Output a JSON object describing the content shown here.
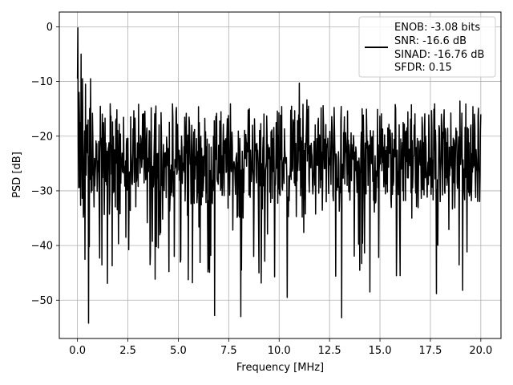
{
  "chart_data": {
    "type": "line",
    "xlabel": "Frequency [MHz]",
    "ylabel": "PSD [dB]",
    "xlim": [
      -0.9,
      21.0
    ],
    "ylim": [
      -57.0,
      2.7
    ],
    "grid": true,
    "line_color": "#000000",
    "x_ticks": [
      0.0,
      2.5,
      5.0,
      7.5,
      10.0,
      12.5,
      15.0,
      17.5,
      20.0
    ],
    "x_tick_labels": [
      "0.0",
      "2.5",
      "5.0",
      "7.5",
      "10.0",
      "12.5",
      "15.0",
      "17.5",
      "20.0"
    ],
    "y_ticks": [
      0,
      -10,
      -20,
      -30,
      -40,
      -50
    ],
    "y_tick_labels": [
      "0",
      "−10",
      "−20",
      "−30",
      "−40",
      "−50"
    ],
    "legend": {
      "placement": "upper right",
      "entries": [
        "ENOB: -3.08 bits",
        "SNR: -16.6 dB",
        "SINAD: -16.76 dB",
        "SFDR: 0.15"
      ]
    },
    "series": [
      {
        "x_range": [
          0.0,
          20.0
        ],
        "num_points": 1024,
        "approx_noise_floor_db": -25,
        "approx_upper_envelope_db": -16,
        "approx_lower_envelope_db": -37,
        "notable_points": [
          {
            "x": 0.0,
            "y": -9.5
          },
          {
            "x": 0.02,
            "y": -0.2
          },
          {
            "x": 0.08,
            "y": -12.0
          },
          {
            "x": 0.13,
            "y": -17.5
          },
          {
            "x": 0.18,
            "y": -5.0
          },
          {
            "x": 0.25,
            "y": -9.5
          },
          {
            "x": 0.4,
            "y": -10.5
          },
          {
            "x": 0.55,
            "y": -54.2
          },
          {
            "x": 0.65,
            "y": -9.5
          },
          {
            "x": 1.1,
            "y": -42.3
          },
          {
            "x": 2.4,
            "y": -38.5
          },
          {
            "x": 3.6,
            "y": -43.5
          },
          {
            "x": 4.8,
            "y": -42.0
          },
          {
            "x": 5.7,
            "y": -46.8
          },
          {
            "x": 6.8,
            "y": -52.8
          },
          {
            "x": 8.1,
            "y": -53.0
          },
          {
            "x": 9.0,
            "y": -45.0
          },
          {
            "x": 10.4,
            "y": -49.5
          },
          {
            "x": 11.0,
            "y": -10.3
          },
          {
            "x": 13.1,
            "y": -53.2
          },
          {
            "x": 14.5,
            "y": -48.5
          },
          {
            "x": 16.0,
            "y": -45.5
          },
          {
            "x": 17.8,
            "y": -48.8
          },
          {
            "x": 19.1,
            "y": -48.2
          },
          {
            "x": 20.0,
            "y": -16.0
          }
        ]
      }
    ]
  }
}
